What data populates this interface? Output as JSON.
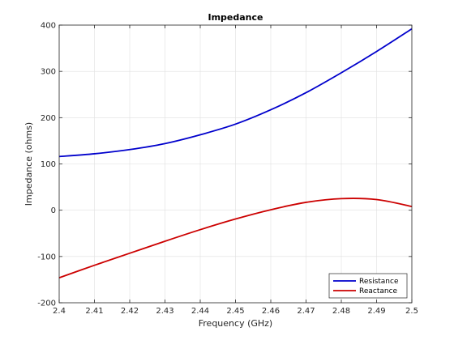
{
  "chart_data": {
    "type": "line",
    "title": "Impedance",
    "xlabel": "Frequency (GHz)",
    "ylabel": "Impedance (ohms)",
    "xlim": [
      2.4,
      2.5
    ],
    "ylim": [
      -200,
      400
    ],
    "x_ticks": [
      "2.4",
      "2.41",
      "2.42",
      "2.43",
      "2.44",
      "2.45",
      "2.46",
      "2.47",
      "2.48",
      "2.49",
      "2.5"
    ],
    "y_ticks": [
      "-200",
      "-100",
      "0",
      "100",
      "200",
      "300",
      "400"
    ],
    "grid": true,
    "legend_position": "bottom-right",
    "x": [
      2.4,
      2.41,
      2.42,
      2.43,
      2.44,
      2.45,
      2.46,
      2.47,
      2.48,
      2.49,
      2.5
    ],
    "series": [
      {
        "name": "Resistance",
        "color": "#0000cc",
        "values": [
          116,
          122,
          131,
          144,
          163,
          186,
          217,
          254,
          297,
          343,
          392
        ]
      },
      {
        "name": "Reactance",
        "color": "#cc0000",
        "values": [
          -146,
          -119,
          -93,
          -67,
          -42,
          -19,
          1,
          17,
          25,
          23,
          8
        ]
      }
    ]
  }
}
